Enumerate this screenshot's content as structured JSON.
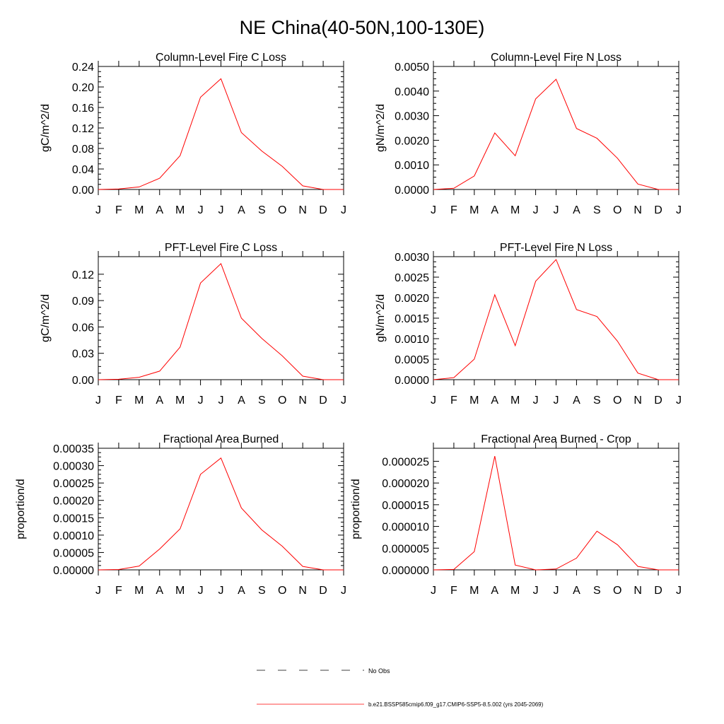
{
  "figure": {
    "title": "NE China(40-50N,100-130E)"
  },
  "months": [
    "J",
    "F",
    "M",
    "A",
    "M",
    "J",
    "J",
    "A",
    "S",
    "O",
    "N",
    "D",
    "J"
  ],
  "legend": {
    "obs_label": "No Obs",
    "model_label": "b.e21.BSSP585cmip6.f09_g17.CMIP6-SSP5-8.5.002 (yrs 2045-2069)",
    "model_color": "#ff0000",
    "obs_color": "#000000"
  },
  "chart_data": [
    {
      "type": "line",
      "title": "Column-Level Fire C Loss",
      "ylabel": "gC/m^2/d",
      "ylim": [
        0,
        0.24
      ],
      "yticks": [
        "0.00",
        "0.04",
        "0.08",
        "0.12",
        "0.16",
        "0.20",
        "0.24"
      ],
      "x": [
        "J",
        "F",
        "M",
        "A",
        "M",
        "J",
        "J",
        "A",
        "S",
        "O",
        "N",
        "D",
        "J"
      ],
      "values": [
        0.0,
        0.001,
        0.005,
        0.022,
        0.066,
        0.18,
        0.216,
        0.111,
        0.075,
        0.045,
        0.007,
        0.0,
        0.0
      ],
      "series_color": "#ff0000"
    },
    {
      "type": "line",
      "title": "Column-Level Fire N Loss",
      "ylabel": "gN/m^2/d",
      "ylim": [
        0,
        0.005
      ],
      "yticks": [
        "0.0000",
        "0.0010",
        "0.0020",
        "0.0030",
        "0.0040",
        "0.0050"
      ],
      "x": [
        "J",
        "F",
        "M",
        "A",
        "M",
        "J",
        "J",
        "A",
        "S",
        "O",
        "N",
        "D",
        "J"
      ],
      "values": [
        0.0,
        5e-05,
        0.00055,
        0.0023,
        0.00137,
        0.00368,
        0.00448,
        0.00248,
        0.00208,
        0.00127,
        0.00022,
        0.0,
        0.0
      ],
      "series_color": "#ff0000"
    },
    {
      "type": "line",
      "title": "PFT-Level Fire C Loss",
      "ylabel": "gC/m^2/d",
      "ylim": [
        0,
        0.14
      ],
      "yticks": [
        "0.00",
        "0.03",
        "0.06",
        "0.09",
        "0.12"
      ],
      "x": [
        "J",
        "F",
        "M",
        "A",
        "M",
        "J",
        "J",
        "A",
        "S",
        "O",
        "N",
        "D",
        "J"
      ],
      "values": [
        0.0,
        0.0005,
        0.0027,
        0.0097,
        0.037,
        0.11,
        0.132,
        0.07,
        0.047,
        0.027,
        0.004,
        0.0,
        0.0
      ],
      "series_color": "#ff0000"
    },
    {
      "type": "line",
      "title": "PFT-Level Fire N Loss",
      "ylabel": "gN/m^2/d",
      "ylim": [
        0,
        0.003
      ],
      "yticks": [
        "0.0000",
        "0.0005",
        "0.0010",
        "0.0015",
        "0.0020",
        "0.0025",
        "0.0030"
      ],
      "x": [
        "J",
        "F",
        "M",
        "A",
        "M",
        "J",
        "J",
        "A",
        "S",
        "O",
        "N",
        "D",
        "J"
      ],
      "values": [
        0.0,
        5e-05,
        0.0005,
        0.00207,
        0.00083,
        0.0024,
        0.00293,
        0.00171,
        0.00154,
        0.00094,
        0.00016,
        0.0,
        0.0
      ],
      "series_color": "#ff0000"
    },
    {
      "type": "line",
      "title": "Fractional Area Burned",
      "ylabel": "proportion/d",
      "ylim": [
        0,
        0.00035
      ],
      "yticks": [
        "0.00000",
        "0.00005",
        "0.00010",
        "0.00015",
        "0.00020",
        "0.00025",
        "0.00030",
        "0.00035"
      ],
      "x": [
        "J",
        "F",
        "M",
        "A",
        "M",
        "J",
        "J",
        "A",
        "S",
        "O",
        "N",
        "D",
        "J"
      ],
      "values": [
        0.0,
        1e-06,
        1.1e-05,
        6e-05,
        0.000118,
        0.000275,
        0.000322,
        0.000178,
        0.000115,
        6.8e-05,
        1e-05,
        0.0,
        0.0
      ],
      "series_color": "#ff0000"
    },
    {
      "type": "line",
      "title": "Fractional Area Burned - Crop",
      "ylabel": "proportion/d",
      "ylim": [
        0,
        2.8e-05
      ],
      "yticks": [
        "0.000000",
        "0.000005",
        "0.000010",
        "0.000015",
        "0.000020",
        "0.000025"
      ],
      "x": [
        "J",
        "F",
        "M",
        "A",
        "M",
        "J",
        "J",
        "A",
        "S",
        "O",
        "N",
        "D",
        "J"
      ],
      "values": [
        0.0,
        1e-07,
        4.2e-06,
        2.62e-05,
        1.1e-06,
        0.0,
        2e-07,
        2.7e-06,
        8.9e-06,
        5.8e-06,
        8e-07,
        0.0,
        0.0
      ],
      "series_color": "#ff0000"
    }
  ]
}
